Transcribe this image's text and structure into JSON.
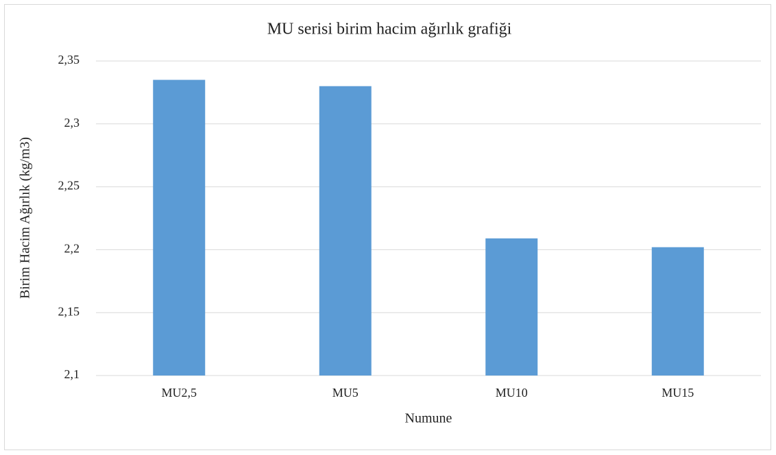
{
  "chart_data": {
    "type": "bar",
    "title": "MU serisi birim hacim ağırlık grafiği",
    "x_label": "Numune",
    "y_label": "Birim Hacim Ağırlık (kg/m3)",
    "categories": [
      "MU2,5",
      "MU5",
      "MU10",
      "MU15"
    ],
    "values": [
      2.335,
      2.33,
      2.209,
      2.202
    ],
    "color": "#5b9bd5",
    "ylim": [
      2.1,
      2.35
    ],
    "yticks": [
      {
        "value": 2.1,
        "label": "2,1"
      },
      {
        "value": 2.15,
        "label": "2,15"
      },
      {
        "value": 2.2,
        "label": "2,2"
      },
      {
        "value": 2.25,
        "label": "2,25"
      },
      {
        "value": 2.3,
        "label": "2,3"
      },
      {
        "value": 2.35,
        "label": "2,35"
      }
    ],
    "grid": true
  }
}
